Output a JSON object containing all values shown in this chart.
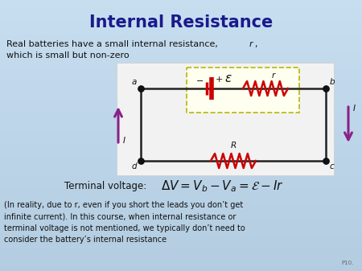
{
  "title": "Internal Resistance",
  "title_color": "#1a1a8c",
  "title_fontsize": 15,
  "bg_color": "#b8d4e8",
  "text1a": "Real batteries have a small internal resistance, ",
  "text1_italic": "r",
  "text1b": ",",
  "text2": "which is small but non-zero",
  "terminal_label": "Terminal voltage:",
  "small_text": "(In reality, due to r, even if you short the leads you don’t get\ninfinite current). In this course, when internal resistance or\nterminal voltage is not mentioned, we typically don’t need to\nconsider the battery’s internal resistance",
  "p10_text": "P10.",
  "circuit_bg": "#f8f8f0",
  "circuit_border": "#999999",
  "dashed_box_color": "#b8b800",
  "dashed_box_fill": "#fffff0",
  "wire_color": "#222222",
  "resistor_color": "#cc0000",
  "battery_color": "#cc0000",
  "arrow_color": "#882288",
  "node_color": "#111111",
  "label_color": "#111111"
}
